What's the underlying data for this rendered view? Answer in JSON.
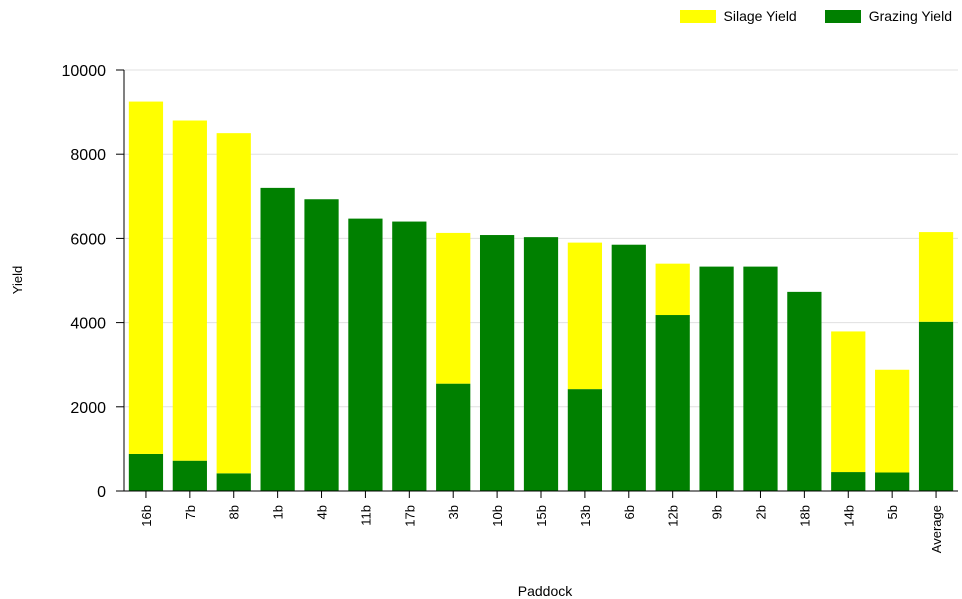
{
  "chart_data": {
    "type": "bar",
    "stacked": true,
    "title": "",
    "xlabel": "Paddock",
    "ylabel": "Yield",
    "ylim": [
      0,
      10000
    ],
    "yticks": [
      0,
      2000,
      4000,
      6000,
      8000,
      10000
    ],
    "grid": "horizontal",
    "legend_position": "top-right",
    "categories": [
      "16b",
      "7b",
      "8b",
      "1b",
      "4b",
      "11b",
      "17b",
      "3b",
      "10b",
      "15b",
      "13b",
      "6b",
      "12b",
      "9b",
      "2b",
      "18b",
      "14b",
      "5b",
      "Average"
    ],
    "series": [
      {
        "name": "Grazing Yield",
        "color": "#008000",
        "values": [
          880,
          720,
          420,
          7200,
          6930,
          6470,
          6400,
          2550,
          6080,
          6030,
          2420,
          5850,
          4180,
          5330,
          5330,
          4730,
          450,
          440,
          4020
        ]
      },
      {
        "name": "Silage Yield",
        "color": "#ffff00",
        "values": [
          8370,
          8080,
          8080,
          0,
          0,
          0,
          0,
          3580,
          0,
          0,
          3480,
          0,
          1220,
          0,
          0,
          0,
          3340,
          2440,
          2130
        ]
      }
    ],
    "legend_order": [
      "Silage Yield",
      "Grazing Yield"
    ]
  }
}
